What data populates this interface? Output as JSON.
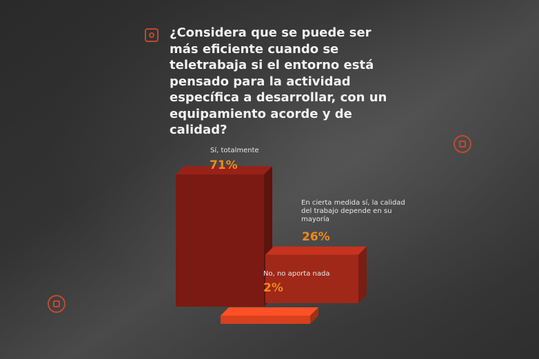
{
  "question": "¿Considera que se puede ser más eficiente cuando se teletrabaja si el entorno está pensado para la actividad específica a desarrollar, con un equipamiento acorde y de calidad?",
  "colors": {
    "bar_dark": "#7a1a12",
    "bar_mid": "#a02818",
    "bar_bright": "#d8401e",
    "value_orange": "#f08a1c",
    "accent": "#c24a2a"
  },
  "chart_data": {
    "type": "bar",
    "categories": [
      "Sí, totalmente",
      "En cierta medida sí, la calidad del trabajo depende en su mayoría",
      "No, no aporta nada"
    ],
    "values": [
      71,
      26,
      2
    ],
    "value_labels": [
      "71%",
      "26%",
      "2%"
    ],
    "ylim": [
      0,
      100
    ]
  }
}
